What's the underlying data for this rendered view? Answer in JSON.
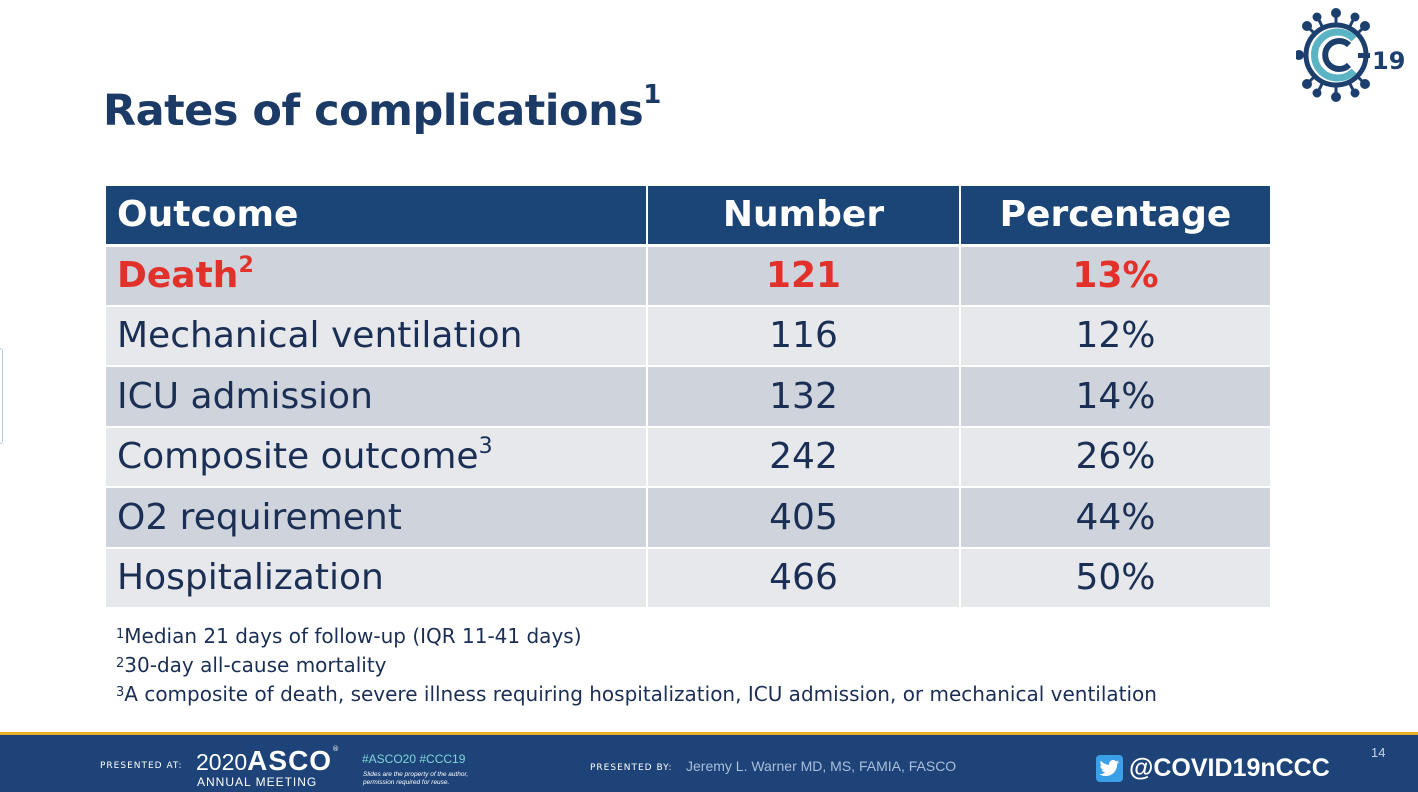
{
  "logo": {
    "icon": "c19-virus-logo-icon",
    "text": "C-19",
    "color": "#1c3f6e",
    "accent": "#5ab4c4"
  },
  "title": {
    "text": "Rates of complications",
    "sup": "1"
  },
  "table": {
    "headers": [
      "Outcome",
      "Number",
      "Percentage"
    ],
    "rows": [
      {
        "outcome": "Death",
        "sup": "2",
        "number": "121",
        "percentage": "13%",
        "highlight": true
      },
      {
        "outcome": "Mechanical ventilation",
        "sup": "",
        "number": "116",
        "percentage": "12%",
        "highlight": false
      },
      {
        "outcome": "ICU admission",
        "sup": "",
        "number": "132",
        "percentage": "14%",
        "highlight": false
      },
      {
        "outcome": "Composite outcome",
        "sup": "3",
        "number": "242",
        "percentage": "26%",
        "highlight": false
      },
      {
        "outcome": "O2 requirement",
        "sup": "",
        "number": "405",
        "percentage": "44%",
        "highlight": false
      },
      {
        "outcome": "Hospitalization",
        "sup": "",
        "number": "466",
        "percentage": "50%",
        "highlight": false
      }
    ],
    "colors": {
      "header_bg": "#1c4577",
      "highlight_text": "#e1312a"
    }
  },
  "footnotes": [
    {
      "sup": "1",
      "text": "Median 21 days of follow-up (IQR 11-41 days)"
    },
    {
      "sup": "2",
      "text": "30-day all-cause mortality"
    },
    {
      "sup": "3",
      "text": "A composite of death, severe illness requiring hospitalization, ICU admission, or mechanical ventilation"
    }
  ],
  "footer": {
    "presented_at_label": "PRESENTED AT:",
    "asco_year": "2020",
    "asco_name": "ASCO",
    "asco_tm": "®",
    "asco_meeting": "ANNUAL MEETING",
    "hashtags": "#ASCO20  #CCC19",
    "slides_note_line1": "Slides are the property of the author,",
    "slides_note_line2": "permission required for reuse.",
    "presented_by_label": "PRESENTED BY:",
    "presenter": "Jeremy L. Warner MD, MS, FAMIA, FASCO",
    "twitter_icon": "twitter-icon",
    "twitter_handle": "@COVID19nCCC",
    "page_number": "14"
  }
}
